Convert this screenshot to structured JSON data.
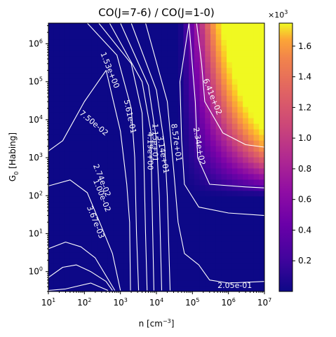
{
  "chart_data": {
    "type": "heatmap",
    "title": "CO(J=7-6) / CO(J=1-0)",
    "xlabel": "n [cm$^{-3}$]",
    "xlabel_text": "n [cm",
    "xlabel_sup": "−3",
    "xlabel_close": "]",
    "ylabel_main": "G",
    "ylabel_sub": "0",
    "ylabel_rest": " [Habing]",
    "x_scale": "log",
    "y_scale": "log",
    "xlim": [
      10,
      10000000
    ],
    "ylim": [
      0.3,
      3500000
    ],
    "x_ticks": [
      {
        "value": 10,
        "base": "10",
        "exp": "1"
      },
      {
        "value": 100,
        "base": "10",
        "exp": "2"
      },
      {
        "value": 1000,
        "base": "10",
        "exp": "3"
      },
      {
        "value": 10000,
        "base": "10",
        "exp": "4"
      },
      {
        "value": 100000,
        "base": "10",
        "exp": "5"
      },
      {
        "value": 1000000,
        "base": "10",
        "exp": "6"
      },
      {
        "value": 10000000,
        "base": "10",
        "exp": "7"
      }
    ],
    "y_ticks": [
      {
        "value": 1,
        "base": "10",
        "exp": "0"
      },
      {
        "value": 10,
        "base": "10",
        "exp": "1"
      },
      {
        "value": 100,
        "base": "10",
        "exp": "2"
      },
      {
        "value": 1000,
        "base": "10",
        "exp": "3"
      },
      {
        "value": 10000,
        "base": "10",
        "exp": "4"
      },
      {
        "value": 100000,
        "base": "10",
        "exp": "5"
      },
      {
        "value": 1000000,
        "base": "10",
        "exp": "6"
      }
    ],
    "colormap": "plasma",
    "colorbar": {
      "multiplier_base": "×10",
      "multiplier_exp": "3",
      "range": [
        0.0,
        1.75
      ],
      "ticks": [
        "0.2",
        "0.4",
        "0.6",
        "0.8",
        "1.0",
        "1.2",
        "1.4",
        "1.6"
      ],
      "tick_values": [
        0.2,
        0.4,
        0.6,
        0.8,
        1.0,
        1.2,
        1.4,
        1.6
      ]
    },
    "contour_color": "#ffffff",
    "contours": [
      {
        "label": "3.67e-03",
        "points": [
          [
            10,
            0.32
          ],
          [
            30,
            0.35
          ],
          [
            150,
            0.5
          ],
          [
            450,
            0.32
          ]
        ]
      },
      {
        "label": "1.00e-02",
        "points": [
          [
            10,
            0.7
          ],
          [
            25,
            1.3
          ],
          [
            60,
            1.5
          ],
          [
            150,
            1.0
          ],
          [
            400,
            0.55
          ],
          [
            600,
            0.32
          ]
        ]
      },
      {
        "label": "2.74e-02",
        "points": [
          [
            10,
            4
          ],
          [
            30,
            6
          ],
          [
            80,
            4.5
          ],
          [
            200,
            2.3
          ],
          [
            700,
            0.32
          ]
        ]
      },
      {
        "label": "7.50e-02",
        "points": [
          [
            10,
            180
          ],
          [
            40,
            260
          ],
          [
            120,
            120
          ],
          [
            300,
            15
          ],
          [
            600,
            3
          ],
          [
            1000,
            0.32
          ]
        ]
      },
      {
        "label": "2.05e-01",
        "points": [
          [
            10,
            1500
          ],
          [
            25,
            2800
          ],
          [
            100,
            30000
          ],
          [
            400,
            200000
          ],
          [
            1000,
            5000
          ],
          [
            1500,
            200
          ],
          [
            1800,
            20
          ],
          [
            1900,
            0.32
          ]
        ]
      },
      {
        "label": "5.61e-01",
        "points": [
          [
            120,
            3500000
          ],
          [
            800,
            500000
          ],
          [
            2000,
            20000
          ],
          [
            2500,
            1000
          ],
          [
            2800,
            10
          ],
          [
            3200,
            0.32
          ]
        ]
      },
      {
        "label": "1.53e+00",
        "points": [
          [
            250,
            3500000
          ],
          [
            2000,
            300000
          ],
          [
            4000,
            15000
          ],
          [
            4500,
            800
          ],
          [
            5000,
            10
          ],
          [
            5500,
            0.32
          ]
        ]
      },
      {
        "label": "4.19e+00",
        "points": [
          [
            500,
            3500000
          ],
          [
            4000,
            100000
          ],
          [
            7000,
            5000
          ],
          [
            7500,
            100
          ],
          [
            8500,
            0.32
          ]
        ]
      },
      {
        "label": "1.15e+01",
        "points": [
          [
            1000,
            3500000
          ],
          [
            6000,
            80000
          ],
          [
            10000,
            3000
          ],
          [
            12000,
            100
          ],
          [
            14000,
            0.32
          ]
        ]
      },
      {
        "label": "3.14e+01",
        "points": [
          [
            2000,
            3500000
          ],
          [
            10000,
            60000
          ],
          [
            17000,
            2000
          ],
          [
            20000,
            100
          ],
          [
            24000,
            0.32
          ]
        ]
      },
      {
        "label": "8.57e+01",
        "points": [
          [
            5000,
            3500000
          ],
          [
            20000,
            30000
          ],
          [
            30000,
            500
          ],
          [
            40000,
            20
          ],
          [
            60000,
            3
          ],
          [
            150000,
            1.5
          ],
          [
            300000,
            0.6
          ],
          [
            1000000,
            0.5
          ],
          [
            10000000,
            0.55
          ]
        ]
      },
      {
        "label": "2.05e-01",
        "points": [
          [
            80000,
            3500000
          ],
          [
            45000,
            100000
          ],
          [
            50000,
            3000
          ],
          [
            60000,
            200
          ],
          [
            150000,
            50
          ],
          [
            1000000,
            35
          ],
          [
            10000000,
            30
          ]
        ]
      },
      {
        "label": "2.34e+02",
        "points": [
          [
            80000,
            3500000
          ],
          [
            120000,
            30000
          ],
          [
            140000,
            1000
          ],
          [
            300000,
            200
          ],
          [
            3000000,
            170
          ],
          [
            10000000,
            160
          ]
        ]
      },
      {
        "label": "6.41e+02",
        "points": [
          [
            130000,
            3500000
          ],
          [
            180000,
            300000
          ],
          [
            220000,
            30000
          ],
          [
            700000,
            4500
          ],
          [
            3000000,
            2200
          ],
          [
            10000000,
            1900
          ]
        ]
      }
    ],
    "contour_labels": [
      {
        "text": "1.53e+00",
        "x": 500,
        "y": 200000,
        "angle": 68
      },
      {
        "text": "5.61e-01",
        "x": 1800,
        "y": 12000,
        "angle": 78
      },
      {
        "text": "7.50e-02",
        "x": 180,
        "y": 8000,
        "angle": 40
      },
      {
        "text": "2.74e-02",
        "x": 300,
        "y": 250,
        "angle": 68
      },
      {
        "text": "1.00e-02",
        "x": 300,
        "y": 100,
        "angle": 68
      },
      {
        "text": "3.67e-03",
        "x": 200,
        "y": 20,
        "angle": 68
      },
      {
        "text": "4.19e+00",
        "x": 6500,
        "y": 1500,
        "angle": 90
      },
      {
        "text": "1.15e+01",
        "x": 9000,
        "y": 2500,
        "angle": 90
      },
      {
        "text": "3.14e+01",
        "x": 15000,
        "y": 1200,
        "angle": 80
      },
      {
        "text": "8.57e+01",
        "x": 35000,
        "y": 2500,
        "angle": 82
      },
      {
        "text": "2.34e+02",
        "x": 150000,
        "y": 2000,
        "angle": 80
      },
      {
        "text": "6.41e+02",
        "x": 350000,
        "y": 40000,
        "angle": 68
      },
      {
        "text": "2.05e-01",
        "x": 1500000,
        "y": 0.42,
        "angle": 0
      }
    ]
  }
}
